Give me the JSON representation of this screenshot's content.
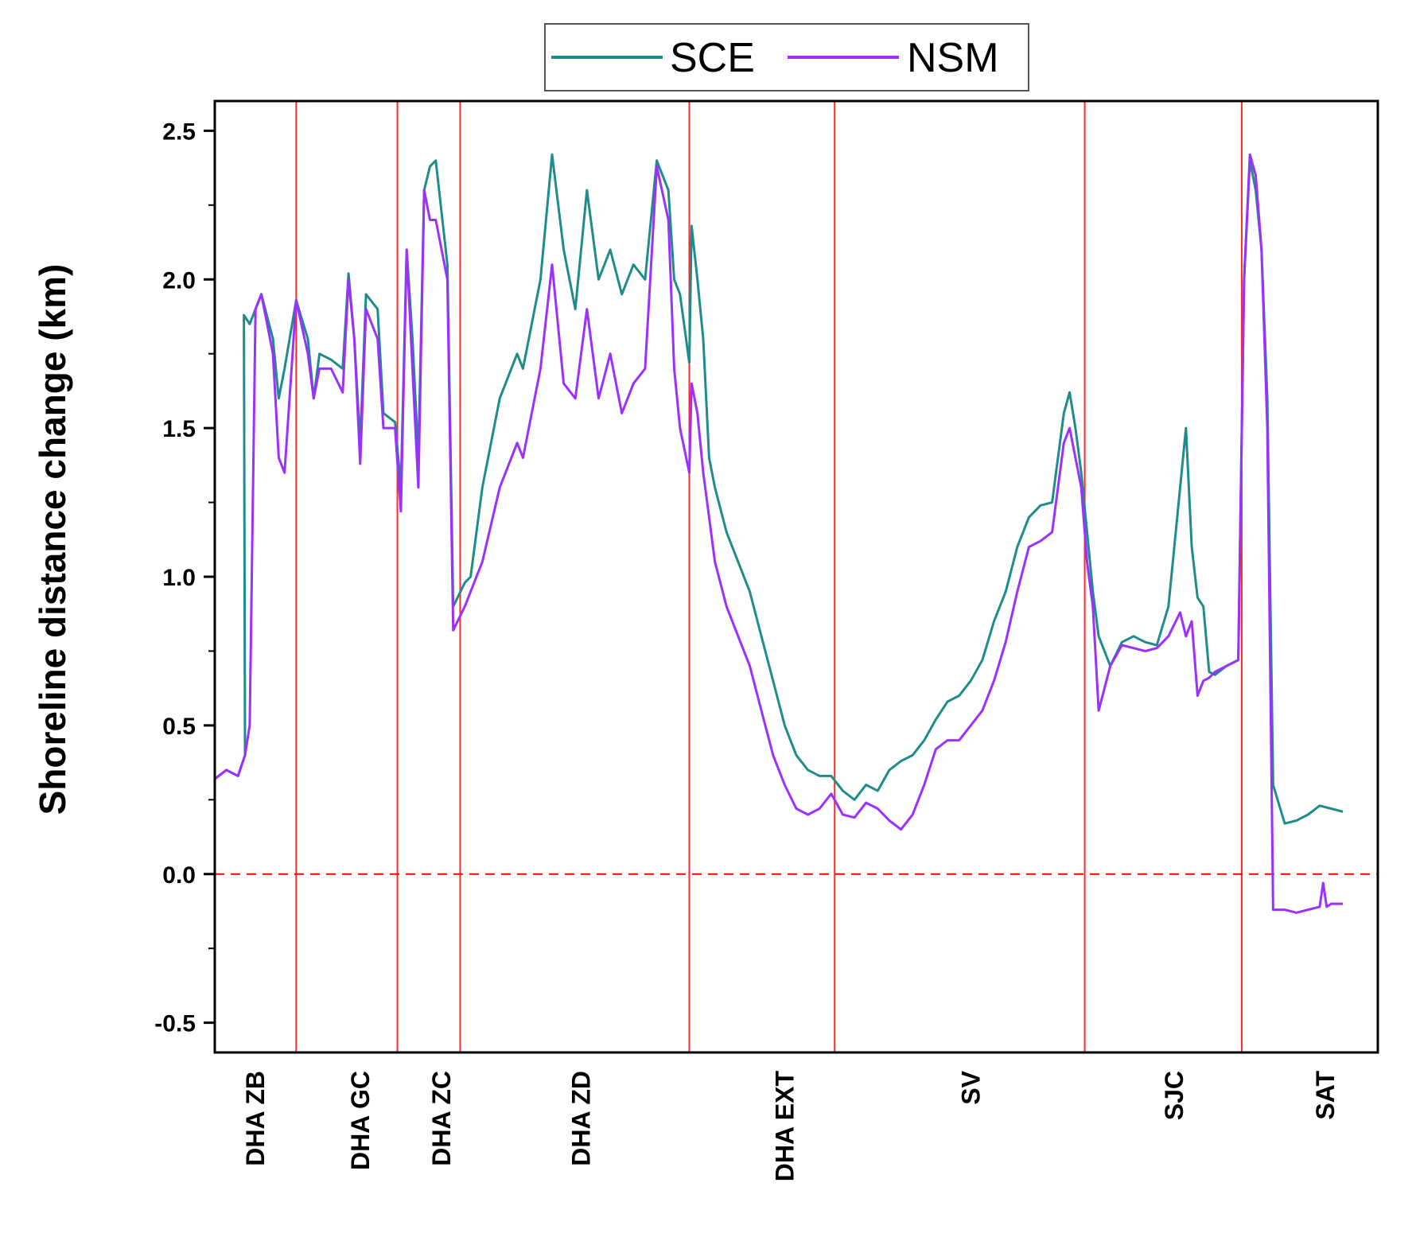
{
  "chart_data": {
    "type": "line",
    "title": "",
    "xlabel": "",
    "ylabel": "Shoreline distance change (km)",
    "xlim": [
      0,
      100
    ],
    "ylim": [
      -0.6,
      2.6
    ],
    "yticks": [
      -0.5,
      0.0,
      0.5,
      1.0,
      1.5,
      2.0,
      2.5
    ],
    "ytick_labels": [
      "-0.5",
      "0.0",
      "0.5",
      "1.0",
      "1.5",
      "2.0",
      "2.5"
    ],
    "legend_position": "top-center",
    "grid": false,
    "reference_line": {
      "y": 0.0,
      "style": "dashed",
      "color": "#ff0000"
    },
    "section_boundaries": [
      7.0,
      15.7,
      21.1,
      40.8,
      53.3,
      74.8,
      88.3
    ],
    "sections": [
      {
        "name": "DHA ZB",
        "center": 3.5
      },
      {
        "name": "DHA GC",
        "center": 12.5
      },
      {
        "name": "DHA ZC",
        "center": 19.5
      },
      {
        "name": "DHA ZD",
        "center": 31.5
      },
      {
        "name": "DHA EXT",
        "center": 49.0
      },
      {
        "name": "SV",
        "center": 65.0
      },
      {
        "name": "SJC",
        "center": 82.5
      },
      {
        "name": "SAT",
        "center": 95.5
      }
    ],
    "series": [
      {
        "name": "SCE",
        "color": "#1f8c8c",
        "points": [
          [
            0.0,
            0.32
          ],
          [
            1.0,
            0.35
          ],
          [
            2.0,
            0.33
          ],
          [
            2.6,
            0.4
          ],
          [
            2.5,
            1.88
          ],
          [
            3.0,
            1.85
          ],
          [
            3.5,
            1.9
          ],
          [
            4.0,
            1.95
          ],
          [
            5.0,
            1.8
          ],
          [
            5.5,
            1.6
          ],
          [
            6.0,
            1.7
          ],
          [
            7.0,
            1.93
          ],
          [
            8.0,
            1.8
          ],
          [
            8.5,
            1.6
          ],
          [
            9.0,
            1.75
          ],
          [
            10.0,
            1.73
          ],
          [
            11.0,
            1.7
          ],
          [
            11.5,
            2.02
          ],
          [
            12.0,
            1.8
          ],
          [
            12.5,
            1.45
          ],
          [
            13.0,
            1.95
          ],
          [
            14.0,
            1.9
          ],
          [
            14.5,
            1.55
          ],
          [
            15.5,
            1.52
          ],
          [
            16.0,
            1.3
          ],
          [
            16.5,
            2.1
          ],
          [
            17.0,
            1.8
          ],
          [
            17.5,
            1.4
          ],
          [
            18.0,
            2.3
          ],
          [
            18.5,
            2.38
          ],
          [
            19.0,
            2.4
          ],
          [
            20.0,
            2.05
          ],
          [
            20.5,
            0.9
          ],
          [
            21.5,
            0.98
          ],
          [
            22.0,
            1.0
          ],
          [
            23.0,
            1.3
          ],
          [
            24.5,
            1.6
          ],
          [
            26.0,
            1.75
          ],
          [
            26.5,
            1.7
          ],
          [
            28.0,
            2.0
          ],
          [
            29.0,
            2.42
          ],
          [
            30.0,
            2.1
          ],
          [
            31.0,
            1.9
          ],
          [
            32.0,
            2.3
          ],
          [
            33.0,
            2.0
          ],
          [
            34.0,
            2.1
          ],
          [
            35.0,
            1.95
          ],
          [
            36.0,
            2.05
          ],
          [
            37.0,
            2.0
          ],
          [
            38.0,
            2.4
          ],
          [
            39.0,
            2.3
          ],
          [
            39.5,
            2.0
          ],
          [
            40.0,
            1.95
          ],
          [
            40.8,
            1.72
          ],
          [
            41.0,
            2.18
          ],
          [
            41.5,
            2.0
          ],
          [
            42.0,
            1.8
          ],
          [
            42.5,
            1.4
          ],
          [
            43.0,
            1.3
          ],
          [
            44.0,
            1.15
          ],
          [
            45.0,
            1.05
          ],
          [
            46.0,
            0.95
          ],
          [
            47.0,
            0.8
          ],
          [
            48.0,
            0.65
          ],
          [
            49.0,
            0.5
          ],
          [
            50.0,
            0.4
          ],
          [
            51.0,
            0.35
          ],
          [
            52.0,
            0.33
          ],
          [
            53.0,
            0.33
          ],
          [
            54.0,
            0.28
          ],
          [
            55.0,
            0.25
          ],
          [
            56.0,
            0.3
          ],
          [
            57.0,
            0.28
          ],
          [
            58.0,
            0.35
          ],
          [
            59.0,
            0.38
          ],
          [
            60.0,
            0.4
          ],
          [
            61.0,
            0.45
          ],
          [
            62.0,
            0.52
          ],
          [
            63.0,
            0.58
          ],
          [
            64.0,
            0.6
          ],
          [
            65.0,
            0.65
          ],
          [
            66.0,
            0.72
          ],
          [
            67.0,
            0.85
          ],
          [
            68.0,
            0.95
          ],
          [
            69.0,
            1.1
          ],
          [
            70.0,
            1.2
          ],
          [
            71.0,
            1.24
          ],
          [
            72.0,
            1.25
          ],
          [
            73.0,
            1.55
          ],
          [
            73.5,
            1.62
          ],
          [
            74.0,
            1.5
          ],
          [
            74.5,
            1.35
          ],
          [
            75.0,
            1.15
          ],
          [
            75.5,
            0.95
          ],
          [
            76.0,
            0.8
          ],
          [
            77.0,
            0.7
          ],
          [
            78.0,
            0.78
          ],
          [
            79.0,
            0.8
          ],
          [
            80.0,
            0.78
          ],
          [
            81.0,
            0.77
          ],
          [
            82.0,
            0.9
          ],
          [
            83.0,
            1.3
          ],
          [
            83.5,
            1.5
          ],
          [
            84.0,
            1.1
          ],
          [
            84.5,
            0.93
          ],
          [
            85.0,
            0.9
          ],
          [
            85.5,
            0.68
          ],
          [
            86.0,
            0.67
          ],
          [
            87.0,
            0.7
          ],
          [
            88.0,
            0.72
          ],
          [
            88.5,
            2.0
          ],
          [
            89.0,
            2.4
          ],
          [
            89.5,
            2.3
          ],
          [
            90.0,
            2.1
          ],
          [
            90.5,
            1.6
          ],
          [
            91.0,
            0.3
          ],
          [
            92.0,
            0.17
          ],
          [
            93.0,
            0.18
          ],
          [
            94.0,
            0.2
          ],
          [
            95.0,
            0.23
          ],
          [
            96.0,
            0.22
          ],
          [
            97.0,
            0.21
          ]
        ]
      },
      {
        "name": "NSM",
        "color": "#9b30ff",
        "points": [
          [
            0.0,
            0.32
          ],
          [
            1.0,
            0.35
          ],
          [
            2.0,
            0.33
          ],
          [
            2.6,
            0.4
          ],
          [
            3.0,
            0.5
          ],
          [
            3.5,
            1.9
          ],
          [
            4.0,
            1.95
          ],
          [
            5.0,
            1.75
          ],
          [
            5.5,
            1.4
          ],
          [
            6.0,
            1.35
          ],
          [
            7.0,
            1.93
          ],
          [
            8.0,
            1.75
          ],
          [
            8.5,
            1.6
          ],
          [
            9.0,
            1.7
          ],
          [
            10.0,
            1.7
          ],
          [
            11.0,
            1.62
          ],
          [
            11.5,
            2.0
          ],
          [
            12.0,
            1.8
          ],
          [
            12.5,
            1.38
          ],
          [
            13.0,
            1.9
          ],
          [
            14.0,
            1.8
          ],
          [
            14.5,
            1.5
          ],
          [
            15.5,
            1.5
          ],
          [
            16.0,
            1.22
          ],
          [
            16.5,
            2.1
          ],
          [
            17.0,
            1.7
          ],
          [
            17.5,
            1.3
          ],
          [
            18.0,
            2.3
          ],
          [
            18.5,
            2.2
          ],
          [
            19.0,
            2.2
          ],
          [
            20.0,
            2.0
          ],
          [
            20.5,
            0.82
          ],
          [
            21.5,
            0.9
          ],
          [
            22.0,
            0.95
          ],
          [
            23.0,
            1.05
          ],
          [
            24.5,
            1.3
          ],
          [
            26.0,
            1.45
          ],
          [
            26.5,
            1.4
          ],
          [
            28.0,
            1.7
          ],
          [
            29.0,
            2.05
          ],
          [
            30.0,
            1.65
          ],
          [
            31.0,
            1.6
          ],
          [
            32.0,
            1.9
          ],
          [
            33.0,
            1.6
          ],
          [
            34.0,
            1.75
          ],
          [
            35.0,
            1.55
          ],
          [
            36.0,
            1.65
          ],
          [
            37.0,
            1.7
          ],
          [
            38.0,
            2.38
          ],
          [
            39.0,
            2.2
          ],
          [
            39.5,
            1.7
          ],
          [
            40.0,
            1.5
          ],
          [
            40.8,
            1.35
          ],
          [
            41.0,
            1.65
          ],
          [
            41.5,
            1.55
          ],
          [
            42.0,
            1.35
          ],
          [
            42.5,
            1.2
          ],
          [
            43.0,
            1.05
          ],
          [
            44.0,
            0.9
          ],
          [
            45.0,
            0.8
          ],
          [
            46.0,
            0.7
          ],
          [
            47.0,
            0.55
          ],
          [
            48.0,
            0.4
          ],
          [
            49.0,
            0.3
          ],
          [
            50.0,
            0.22
          ],
          [
            51.0,
            0.2
          ],
          [
            52.0,
            0.22
          ],
          [
            53.0,
            0.27
          ],
          [
            54.0,
            0.2
          ],
          [
            55.0,
            0.19
          ],
          [
            56.0,
            0.24
          ],
          [
            57.0,
            0.22
          ],
          [
            58.0,
            0.18
          ],
          [
            59.0,
            0.15
          ],
          [
            60.0,
            0.2
          ],
          [
            61.0,
            0.3
          ],
          [
            62.0,
            0.42
          ],
          [
            63.0,
            0.45
          ],
          [
            64.0,
            0.45
          ],
          [
            65.0,
            0.5
          ],
          [
            66.0,
            0.55
          ],
          [
            67.0,
            0.65
          ],
          [
            68.0,
            0.78
          ],
          [
            69.0,
            0.95
          ],
          [
            70.0,
            1.1
          ],
          [
            71.0,
            1.12
          ],
          [
            72.0,
            1.15
          ],
          [
            73.0,
            1.45
          ],
          [
            73.5,
            1.5
          ],
          [
            74.0,
            1.4
          ],
          [
            74.5,
            1.3
          ],
          [
            75.0,
            1.05
          ],
          [
            75.5,
            0.9
          ],
          [
            76.0,
            0.55
          ],
          [
            77.0,
            0.7
          ],
          [
            78.0,
            0.77
          ],
          [
            79.0,
            0.76
          ],
          [
            80.0,
            0.75
          ],
          [
            81.0,
            0.76
          ],
          [
            82.0,
            0.8
          ],
          [
            83.0,
            0.88
          ],
          [
            83.5,
            0.8
          ],
          [
            84.0,
            0.85
          ],
          [
            84.5,
            0.6
          ],
          [
            85.0,
            0.65
          ],
          [
            85.5,
            0.66
          ],
          [
            86.0,
            0.68
          ],
          [
            87.0,
            0.7
          ],
          [
            88.0,
            0.72
          ],
          [
            88.5,
            2.0
          ],
          [
            89.0,
            2.42
          ],
          [
            89.5,
            2.35
          ],
          [
            90.0,
            2.1
          ],
          [
            90.5,
            1.5
          ],
          [
            91.0,
            -0.12
          ],
          [
            92.0,
            -0.12
          ],
          [
            93.0,
            -0.13
          ],
          [
            94.0,
            -0.12
          ],
          [
            95.0,
            -0.11
          ],
          [
            95.3,
            -0.03
          ],
          [
            95.6,
            -0.11
          ],
          [
            96.0,
            -0.1
          ],
          [
            97.0,
            -0.1
          ]
        ]
      }
    ]
  }
}
